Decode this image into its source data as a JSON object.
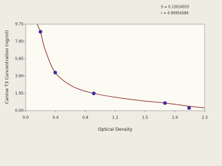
{
  "chart_data": {
    "type": "scatter",
    "x_label": "Optical Density",
    "y_label": "Canine T3 Concentration (ng/ml)",
    "annotations": [
      "S = 0.13024555",
      "r = 0.99954586"
    ],
    "xlim": [
      0,
      2.3
    ],
    "ylim": [
      0,
      9.75
    ],
    "xticks": [
      {
        "value": 0,
        "label": "0.0"
      },
      {
        "value": 0.3833,
        "label": "0.4"
      },
      {
        "value": 0.7667,
        "label": "0.8"
      },
      {
        "value": 1.15,
        "label": "1.2"
      },
      {
        "value": 1.5333,
        "label": "1.5"
      },
      {
        "value": 1.9167,
        "label": "1.9"
      },
      {
        "value": 2.3,
        "label": "2.3"
      }
    ],
    "yticks": [
      {
        "value": 0,
        "label": "0.00"
      },
      {
        "value": 1.95,
        "label": "1.95"
      },
      {
        "value": 3.9,
        "label": "3.90"
      },
      {
        "value": 5.85,
        "label": "5.85"
      },
      {
        "value": 7.8,
        "label": "7.80"
      },
      9.75
    ],
    "grid": false,
    "series": [
      {
        "style": "line",
        "color": "#8b1a1a",
        "x": [
          0.15,
          0.17,
          0.19,
          0.25,
          0.38,
          0.6,
          0.875,
          1.2,
          1.5,
          1.79,
          2.1,
          2.3
        ],
        "values": [
          9.75,
          9.3,
          8.9,
          6.9,
          4.3,
          2.75,
          1.95,
          1.45,
          1.12,
          0.86,
          0.5,
          0.3
        ]
      },
      {
        "style": "markers",
        "color": "#3b2c9e",
        "x": [
          0.19,
          0.38,
          0.875,
          1.79,
          2.1
        ],
        "values": [
          8.9,
          4.3,
          1.95,
          0.86,
          0.31
        ]
      }
    ]
  }
}
